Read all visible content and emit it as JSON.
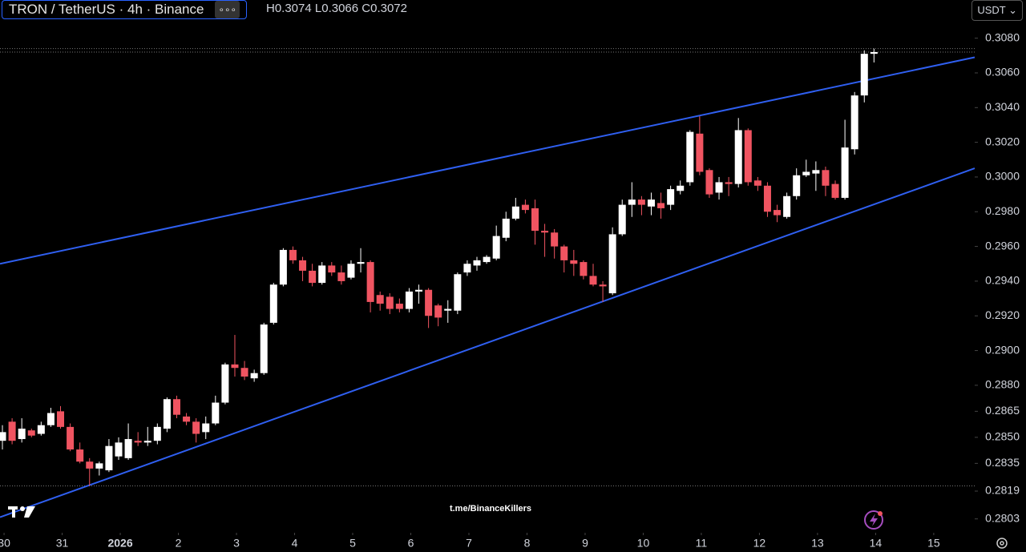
{
  "header": {
    "symbol": "TRON / TetherUS · 4h · Binance",
    "ohlc": "H0.3074 L0.3066 C0.3072",
    "currency": "USDT"
  },
  "chart_data": {
    "type": "candlestick",
    "watermark": "t.me/BinanceKillers",
    "categories": [
      null,
      null,
      null,
      null,
      null,
      null,
      null,
      null,
      null,
      null,
      null,
      null,
      null,
      null,
      null,
      null,
      null,
      null,
      null,
      null,
      null,
      null,
      null,
      null,
      null,
      null,
      null,
      null,
      null,
      null,
      null,
      null,
      null,
      null,
      null,
      null,
      null,
      null,
      null,
      null,
      null,
      null,
      null,
      null,
      null,
      null,
      null,
      null,
      null,
      null,
      null,
      null,
      null,
      null,
      null,
      null,
      null,
      null,
      null,
      null,
      null,
      null,
      null,
      null,
      null,
      null,
      null,
      null,
      null,
      null,
      null,
      null,
      null,
      null,
      null,
      null,
      null,
      null,
      null,
      null,
      null,
      null,
      null,
      null,
      null,
      null,
      null,
      null,
      null,
      null,
      null
    ],
    "open": [
      0.2848,
      0.2859,
      0.2849,
      0.2854,
      0.2852,
      0.2857,
      0.2865,
      0.2856,
      0.2843,
      0.2836,
      0.2832,
      0.2831,
      0.2839,
      0.2838,
      0.2848,
      0.2847,
      0.2848,
      0.2855,
      0.2872,
      0.2862,
      0.2859,
      0.2853,
      0.2858,
      0.287,
      0.2892,
      0.289,
      0.2884,
      0.2887,
      0.2916,
      0.2938,
      0.2958,
      0.2952,
      0.2946,
      0.2939,
      0.2949,
      0.2945,
      0.2942,
      0.295,
      0.2951,
      0.2932,
      0.2931,
      0.2927,
      0.2924,
      0.2934,
      0.2935,
      0.2926,
      0.2923,
      0.2923,
      0.2945,
      0.2949,
      0.2951,
      0.2953,
      0.2965,
      0.2976,
      0.2984,
      0.2982,
      0.2969,
      0.2968,
      0.296,
      0.2952,
      0.2951,
      0.2943,
      0.2938,
      0.2933,
      0.2967,
      0.2984,
      0.2987,
      0.2983,
      0.2985,
      0.2984,
      0.2992,
      0.2997,
      0.3025,
      0.3004,
      0.2991,
      0.2997,
      0.2996,
      0.3027,
      0.2998,
      0.2995,
      0.2981,
      0.2977,
      0.2989,
      0.3001,
      0.3002,
      0.3004,
      0.2996,
      0.2988,
      0.3016,
      0.3047,
      0.3071
    ],
    "high": [
      0.2857,
      0.2861,
      0.2861,
      0.2855,
      0.2859,
      0.2867,
      0.2868,
      0.2858,
      0.2847,
      0.2838,
      0.2836,
      0.2849,
      0.285,
      0.2858,
      0.2853,
      0.2856,
      0.2858,
      0.2873,
      0.2874,
      0.2864,
      0.2861,
      0.2862,
      0.2874,
      0.2893,
      0.2909,
      0.2894,
      0.2889,
      0.2916,
      0.2939,
      0.2959,
      0.296,
      0.2954,
      0.295,
      0.2951,
      0.2951,
      0.2949,
      0.2952,
      0.2959,
      0.2952,
      0.2934,
      0.2933,
      0.293,
      0.2936,
      0.2938,
      0.2936,
      0.2927,
      0.2929,
      0.2945,
      0.2952,
      0.2954,
      0.2955,
      0.2972,
      0.298,
      0.2988,
      0.2987,
      0.2987,
      0.2973,
      0.297,
      0.2961,
      0.2958,
      0.2952,
      0.295,
      0.294,
      0.2971,
      0.2987,
      0.2997,
      0.2989,
      0.2991,
      0.2991,
      0.2995,
      0.2998,
      0.3027,
      0.3035,
      0.3005,
      0.3,
      0.3,
      0.3034,
      0.3028,
      0.3,
      0.2997,
      0.2984,
      0.2991,
      0.3005,
      0.301,
      0.3009,
      0.3006,
      0.2998,
      0.3033,
      0.3049,
      0.3073,
      0.3074
    ],
    "low": [
      0.2843,
      0.2846,
      0.2847,
      0.285,
      0.2851,
      0.2856,
      0.2855,
      0.2842,
      0.2835,
      0.2822,
      0.2828,
      0.283,
      0.2837,
      0.2837,
      0.2845,
      0.2845,
      0.2846,
      0.2853,
      0.2861,
      0.2857,
      0.2847,
      0.2849,
      0.2857,
      0.2869,
      0.2885,
      0.2883,
      0.2882,
      0.2886,
      0.2915,
      0.2937,
      0.295,
      0.294,
      0.2937,
      0.2938,
      0.2943,
      0.2938,
      0.2941,
      0.2945,
      0.2922,
      0.2923,
      0.2921,
      0.2922,
      0.2922,
      0.2927,
      0.2913,
      0.2914,
      0.2916,
      0.2921,
      0.2943,
      0.2946,
      0.295,
      0.2952,
      0.2963,
      0.2975,
      0.2979,
      0.2961,
      0.2954,
      0.2953,
      0.2945,
      0.2943,
      0.2941,
      0.2937,
      0.2928,
      0.2932,
      0.2966,
      0.2977,
      0.2978,
      0.2978,
      0.2976,
      0.2981,
      0.299,
      0.2995,
      0.3001,
      0.2988,
      0.2987,
      0.2989,
      0.2994,
      0.2995,
      0.2992,
      0.2977,
      0.2974,
      0.2976,
      0.2987,
      0.3,
      0.2992,
      0.2989,
      0.2987,
      0.2987,
      0.3013,
      0.3043,
      0.3066
    ],
    "close": [
      0.2853,
      0.2848,
      0.2855,
      0.2851,
      0.2857,
      0.2864,
      0.2856,
      0.2843,
      0.2836,
      0.2832,
      0.2835,
      0.2845,
      0.2847,
      0.2849,
      0.2847,
      0.2848,
      0.2856,
      0.2872,
      0.2863,
      0.2859,
      0.2852,
      0.2858,
      0.287,
      0.2892,
      0.289,
      0.2885,
      0.2887,
      0.2915,
      0.2938,
      0.2958,
      0.2952,
      0.2946,
      0.2939,
      0.2949,
      0.2945,
      0.294,
      0.295,
      0.2951,
      0.2928,
      0.2927,
      0.2924,
      0.2924,
      0.2934,
      0.2935,
      0.292,
      0.2919,
      0.2924,
      0.2944,
      0.295,
      0.2952,
      0.2954,
      0.2966,
      0.2976,
      0.2983,
      0.2981,
      0.2969,
      0.2968,
      0.296,
      0.2952,
      0.295,
      0.2943,
      0.2938,
      0.2937,
      0.2967,
      0.2984,
      0.2987,
      0.2984,
      0.2987,
      0.2982,
      0.2993,
      0.2995,
      0.3026,
      0.3003,
      0.299,
      0.2997,
      0.2996,
      0.3027,
      0.2997,
      0.2995,
      0.298,
      0.2978,
      0.2989,
      0.3001,
      0.3003,
      0.3004,
      0.2995,
      0.2988,
      0.3017,
      0.3047,
      0.3071,
      0.3072
    ],
    "up_color": "#ffffff",
    "down_color": "#f05461",
    "trendlines": [
      {
        "color": "#2f5ff0",
        "x": [
          -0.25,
          100.4
        ],
        "values": [
          0.295,
          0.3069
        ]
      },
      {
        "color": "#2f5ff0",
        "x": [
          -0.25,
          100.4
        ],
        "values": [
          0.2804,
          0.3005
        ]
      }
    ],
    "hlines": [
      0.3074,
      0.3072,
      0.2822
    ],
    "xlim": [
      -0.25,
      100.4
    ],
    "ylim": [
      0.2795,
      0.3102
    ],
    "xticks": [
      {
        "value": 0.17,
        "label": "30"
      },
      {
        "value": 6.17,
        "label": "31"
      },
      {
        "value": 12.17,
        "label": "2026"
      },
      {
        "value": 18.17,
        "label": "2"
      },
      {
        "value": 24.17,
        "label": "3"
      },
      {
        "value": 30.17,
        "label": "4"
      },
      {
        "value": 36.17,
        "label": "5"
      },
      {
        "value": 42.17,
        "label": "6"
      },
      {
        "value": 48.17,
        "label": "7"
      },
      {
        "value": 54.17,
        "label": "8"
      },
      {
        "value": 60.17,
        "label": "9"
      },
      {
        "value": 66.17,
        "label": "10"
      },
      {
        "value": 72.17,
        "label": "11"
      },
      {
        "value": 78.17,
        "label": "12"
      },
      {
        "value": 84.17,
        "label": "13"
      },
      {
        "value": 90.17,
        "label": "14"
      },
      {
        "value": 96.17,
        "label": "15"
      }
    ],
    "yticks": [
      {
        "value": 0.308,
        "label": "0.3080"
      },
      {
        "value": 0.306,
        "label": "0.3060"
      },
      {
        "value": 0.304,
        "label": "0.3040"
      },
      {
        "value": 0.302,
        "label": "0.3020"
      },
      {
        "value": 0.3,
        "label": "0.3000"
      },
      {
        "value": 0.298,
        "label": "0.2980"
      },
      {
        "value": 0.296,
        "label": "0.2960"
      },
      {
        "value": 0.294,
        "label": "0.2940"
      },
      {
        "value": 0.292,
        "label": "0.2920"
      },
      {
        "value": 0.29,
        "label": "0.2900"
      },
      {
        "value": 0.288,
        "label": "0.2880"
      },
      {
        "value": 0.2865,
        "label": "0.2865"
      },
      {
        "value": 0.285,
        "label": "0.2850"
      },
      {
        "value": 0.2835,
        "label": "0.2835"
      },
      {
        "value": 0.2819,
        "label": "0.2819"
      },
      {
        "value": 0.2803,
        "label": "0.2803"
      }
    ]
  }
}
